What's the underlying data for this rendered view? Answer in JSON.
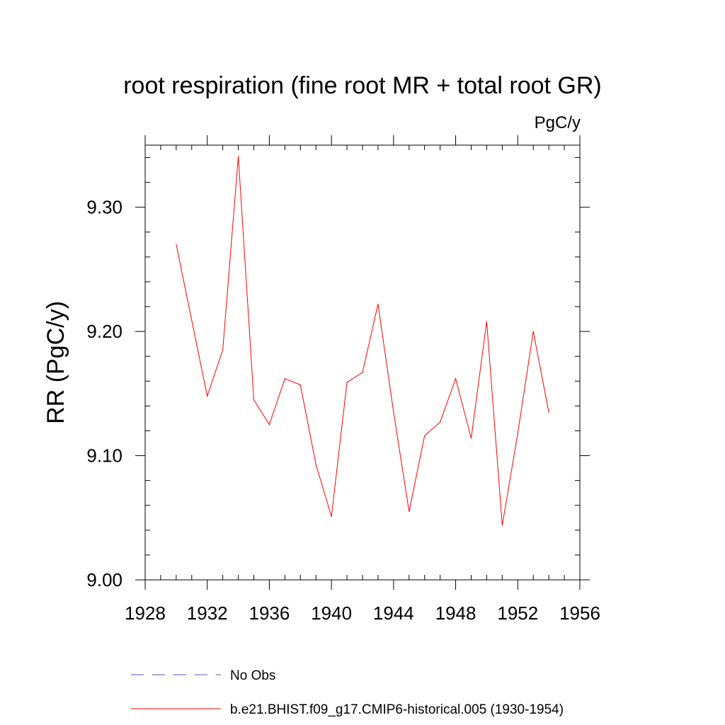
{
  "chart_data": {
    "type": "line",
    "title": "root respiration (fine root MR + total root GR)",
    "units_label": "PgC/y",
    "xlabel": "",
    "ylabel": "RR  (PgC/y)",
    "xlim": [
      1928,
      1956
    ],
    "ylim": [
      9.0,
      9.35
    ],
    "x_ticks": [
      1928,
      1932,
      1936,
      1940,
      1944,
      1948,
      1952,
      1956
    ],
    "x_tick_labels": [
      "1928",
      "1932",
      "1936",
      "1940",
      "1944",
      "1948",
      "1952",
      "1956"
    ],
    "y_ticks": [
      9.0,
      9.1,
      9.2,
      9.3
    ],
    "y_tick_labels": [
      "9.00",
      "9.10",
      "9.20",
      "9.30"
    ],
    "grid": false,
    "legend_position": "bottom",
    "series": [
      {
        "name": "b.e21.BHIST.f09_g17.CMIP6-historical.005 (1930-1954)",
        "color": "#ff0000",
        "style": "solid",
        "x": [
          1930,
          1931,
          1932,
          1933,
          1934,
          1935,
          1936,
          1937,
          1938,
          1939,
          1940,
          1941,
          1942,
          1943,
          1944,
          1945,
          1946,
          1947,
          1948,
          1949,
          1950,
          1951,
          1952,
          1953,
          1954
        ],
        "values": [
          9.27,
          9.209,
          9.148,
          9.185,
          9.341,
          9.145,
          9.125,
          9.162,
          9.157,
          9.093,
          9.051,
          9.159,
          9.167,
          9.222,
          9.135,
          9.055,
          9.116,
          9.127,
          9.162,
          9.114,
          9.208,
          9.044,
          9.118,
          9.2,
          9.135
        ]
      }
    ],
    "legend": [
      {
        "label": "No Obs",
        "color": "#5a50b4",
        "style": "dashed"
      },
      {
        "label": "b.e21.BHIST.f09_g17.CMIP6-historical.005 (1930-1954)",
        "color": "#ff0000",
        "style": "solid"
      }
    ]
  }
}
